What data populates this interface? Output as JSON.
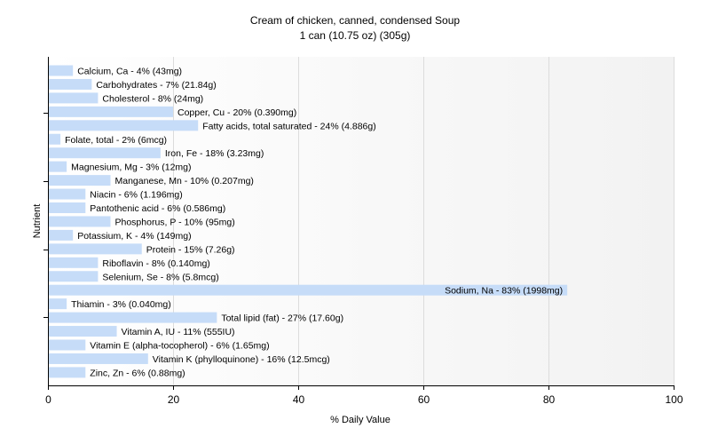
{
  "chart_data": {
    "type": "bar",
    "orientation": "horizontal",
    "title": "Cream of chicken, canned, condensed Soup",
    "subtitle": "1 can (10.75 oz) (305g)",
    "xlabel": "% Daily Value",
    "ylabel": "Nutrient",
    "xlim": [
      0,
      100
    ],
    "xticks": [
      0,
      20,
      40,
      60,
      80,
      100
    ],
    "grid": true,
    "colors": {
      "bar": "#c6dcf8",
      "grid": "#dcdcdc",
      "axis": "#000000",
      "text": "#000000",
      "plot_bg_start": "#ffffff",
      "plot_bg_end": "#f2f2f2"
    },
    "categories": [
      "Calcium, Ca",
      "Carbohydrates",
      "Cholesterol",
      "Copper, Cu",
      "Fatty acids, total saturated",
      "Folate, total",
      "Iron, Fe",
      "Magnesium, Mg",
      "Manganese, Mn",
      "Niacin",
      "Pantothenic acid",
      "Phosphorus, P",
      "Potassium, K",
      "Protein",
      "Riboflavin",
      "Selenium, Se",
      "Sodium, Na",
      "Thiamin",
      "Total lipid (fat)",
      "Vitamin A, IU",
      "Vitamin E (alpha-tocopherol)",
      "Vitamin K (phylloquinone)",
      "Zinc, Zn"
    ],
    "values": [
      4,
      7,
      8,
      20,
      24,
      2,
      18,
      3,
      10,
      6,
      6,
      10,
      4,
      15,
      8,
      8,
      83,
      3,
      27,
      11,
      6,
      16,
      6
    ],
    "labels": [
      "Calcium, Ca - 4% (43mg)",
      "Carbohydrates - 7% (21.84g)",
      "Cholesterol - 8% (24mg)",
      "Copper, Cu - 20% (0.390mg)",
      "Fatty acids, total saturated - 24% (4.886g)",
      "Folate, total - 2% (6mcg)",
      "Iron, Fe - 18% (3.23mg)",
      "Magnesium, Mg - 3% (12mg)",
      "Manganese, Mn - 10% (0.207mg)",
      "Niacin - 6% (1.196mg)",
      "Pantothenic acid - 6% (0.586mg)",
      "Phosphorus, P - 10% (95mg)",
      "Potassium, K - 4% (149mg)",
      "Protein - 15% (7.26g)",
      "Riboflavin - 8% (0.140mg)",
      "Selenium, Se - 8% (5.8mcg)",
      "Sodium, Na - 83% (1998mg)",
      "Thiamin - 3% (0.040mg)",
      "Total lipid (fat) - 27% (17.60g)",
      "Vitamin A, IU - 11% (555IU)",
      "Vitamin E (alpha-tocopherol) - 6% (1.65mg)",
      "Vitamin K (phylloquinone) - 16% (12.5mcg)",
      "Zinc, Zn - 6% (0.88mg)"
    ]
  }
}
